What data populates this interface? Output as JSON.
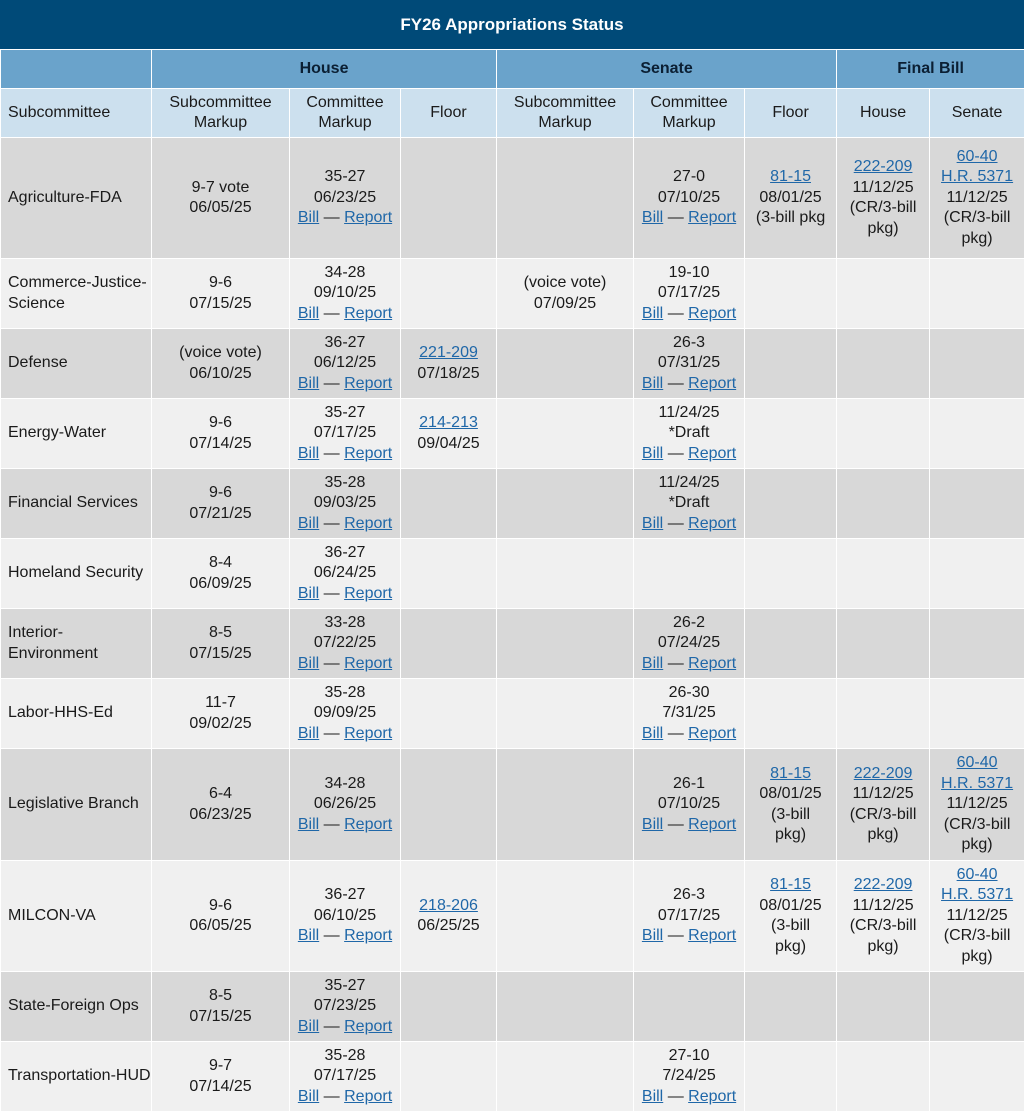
{
  "title": "FY26 Appropriations Status",
  "groups": {
    "house": "House",
    "senate": "Senate",
    "final": "Final Bill"
  },
  "columns": {
    "subcommittee": "Subcommittee",
    "house_sub": "Subcommittee Markup",
    "house_comm": "Committee Markup",
    "house_floor": "Floor",
    "senate_sub": "Subcommittee Markup",
    "senate_comm": "Committee Markup",
    "senate_floor": "Floor",
    "final_house": "House",
    "final_senate": "Senate"
  },
  "bill_label": "Bill",
  "report_label": "Report",
  "dash": "—",
  "rows": [
    {
      "name": "Agriculture-FDA",
      "height": 121,
      "shade": "dark",
      "house_sub": [
        {
          "t": "9-7 vote"
        },
        {
          "t": "06/05/25"
        }
      ],
      "house_comm": [
        {
          "t": "35-27"
        },
        {
          "t": "06/23/25"
        },
        {
          "br": 1
        }
      ],
      "house_floor": [],
      "senate_sub": [],
      "senate_comm": [
        {
          "t": "27-0"
        },
        {
          "t": "07/10/25"
        },
        {
          "br": 1
        }
      ],
      "senate_floor": [
        {
          "t": "81-15",
          "link": 1
        },
        {
          "t": "08/01/25"
        },
        {
          "t": "(3-bill pkg"
        }
      ],
      "final_house": [
        {
          "t": "222-209",
          "link": 1
        },
        {
          "t": "11/12/25"
        },
        {
          "t": "(CR/3-bill"
        },
        {
          "t": "pkg)"
        }
      ],
      "final_senate": [
        {
          "t": "60-40",
          "link": 1
        },
        {
          "t": "H.R. 5371",
          "link": 1
        },
        {
          "t": "11/12/25"
        },
        {
          "t": "(CR/3-bill"
        },
        {
          "t": "pkg)"
        }
      ]
    },
    {
      "name": "Commerce-Justice-Science",
      "height": 70,
      "shade": "light",
      "house_sub": [
        {
          "t": "9-6"
        },
        {
          "t": "07/15/25"
        }
      ],
      "house_comm": [
        {
          "t": "34-28"
        },
        {
          "t": "09/10/25"
        },
        {
          "br": 1
        }
      ],
      "house_floor": [],
      "senate_sub": [
        {
          "t": "(voice vote)"
        },
        {
          "t": "07/09/25"
        }
      ],
      "senate_comm": [
        {
          "t": "19-10"
        },
        {
          "t": "07/17/25"
        },
        {
          "br": 1
        }
      ],
      "senate_floor": [],
      "final_house": [],
      "final_senate": []
    },
    {
      "name": "Defense",
      "height": 70,
      "shade": "dark",
      "house_sub": [
        {
          "t": "(voice vote)"
        },
        {
          "t": "06/10/25"
        }
      ],
      "house_comm": [
        {
          "t": "36-27"
        },
        {
          "t": "06/12/25"
        },
        {
          "br": 1
        }
      ],
      "house_floor": [
        {
          "t": "221-209",
          "link": 1
        },
        {
          "t": "07/18/25"
        }
      ],
      "senate_sub": [],
      "senate_comm": [
        {
          "t": "26-3"
        },
        {
          "t": "07/31/25"
        },
        {
          "br": 1
        }
      ],
      "senate_floor": [],
      "final_house": [],
      "final_senate": []
    },
    {
      "name": "Energy-Water",
      "height": 70,
      "shade": "light",
      "house_sub": [
        {
          "t": "9-6"
        },
        {
          "t": "07/14/25"
        }
      ],
      "house_comm": [
        {
          "t": "35-27"
        },
        {
          "t": "07/17/25"
        },
        {
          "br": 1
        }
      ],
      "house_floor": [
        {
          "t": "214-213",
          "link": 1
        },
        {
          "t": "09/04/25"
        }
      ],
      "senate_sub": [],
      "senate_comm": [
        {
          "t": "11/24/25"
        },
        {
          "t": "*Draft"
        },
        {
          "br": 1
        }
      ],
      "senate_floor": [],
      "final_house": [],
      "final_senate": []
    },
    {
      "name": "Financial Services",
      "height": 70,
      "shade": "dark",
      "house_sub": [
        {
          "t": "9-6"
        },
        {
          "t": "07/21/25"
        }
      ],
      "house_comm": [
        {
          "t": "35-28"
        },
        {
          "t": "09/03/25"
        },
        {
          "br": 1
        }
      ],
      "house_floor": [],
      "senate_sub": [],
      "senate_comm": [
        {
          "t": "11/24/25"
        },
        {
          "t": "*Draft"
        },
        {
          "br": 1
        }
      ],
      "senate_floor": [],
      "final_house": [],
      "final_senate": []
    },
    {
      "name": "Homeland Security",
      "height": 70,
      "shade": "light",
      "house_sub": [
        {
          "t": "8-4"
        },
        {
          "t": "06/09/25"
        }
      ],
      "house_comm": [
        {
          "t": "36-27"
        },
        {
          "t": "06/24/25"
        },
        {
          "br": 1
        }
      ],
      "house_floor": [],
      "senate_sub": [],
      "senate_comm": [],
      "senate_floor": [],
      "final_house": [],
      "final_senate": []
    },
    {
      "name": "Interior-Environment",
      "height": 70,
      "shade": "dark",
      "house_sub": [
        {
          "t": "8-5"
        },
        {
          "t": "07/15/25"
        }
      ],
      "house_comm": [
        {
          "t": "33-28"
        },
        {
          "t": "07/22/25"
        },
        {
          "br": 1
        }
      ],
      "house_floor": [],
      "senate_sub": [],
      "senate_comm": [
        {
          "t": "26-2"
        },
        {
          "t": "07/24/25"
        },
        {
          "br": 1
        }
      ],
      "senate_floor": [],
      "final_house": [],
      "final_senate": []
    },
    {
      "name": "Labor-HHS-Ed",
      "height": 70,
      "shade": "light",
      "house_sub": [
        {
          "t": "11-7"
        },
        {
          "t": "09/02/25"
        }
      ],
      "house_comm": [
        {
          "t": "35-28"
        },
        {
          "t": "09/09/25"
        },
        {
          "br": 1
        }
      ],
      "house_floor": [],
      "senate_sub": [],
      "senate_comm": [
        {
          "t": "26-30"
        },
        {
          "t": "7/31/25"
        },
        {
          "br": 1
        }
      ],
      "senate_floor": [],
      "final_house": [],
      "final_senate": []
    },
    {
      "name": "Legislative Branch",
      "height": 112,
      "shade": "dark",
      "house_sub": [
        {
          "t": "6-4"
        },
        {
          "t": "06/23/25"
        }
      ],
      "house_comm": [
        {
          "t": "34-28"
        },
        {
          "t": "06/26/25"
        },
        {
          "br": 1
        }
      ],
      "house_floor": [],
      "senate_sub": [],
      "senate_comm": [
        {
          "t": "26-1"
        },
        {
          "t": "07/10/25"
        },
        {
          "br": 1
        }
      ],
      "senate_floor": [
        {
          "t": "81-15",
          "link": 1
        },
        {
          "t": "08/01/25"
        },
        {
          "t": "(3-bill"
        },
        {
          "t": "pkg)"
        }
      ],
      "final_house": [
        {
          "t": "222-209",
          "link": 1
        },
        {
          "t": "11/12/25"
        },
        {
          "t": "(CR/3-bill"
        },
        {
          "t": "pkg)"
        }
      ],
      "final_senate": [
        {
          "t": "60-40",
          "link": 1
        },
        {
          "t": "H.R. 5371",
          "link": 1
        },
        {
          "t": "11/12/25"
        },
        {
          "t": "(CR/3-bill"
        },
        {
          "t": "pkg)"
        }
      ]
    },
    {
      "name": "MILCON-VA",
      "height": 111,
      "shade": "light",
      "house_sub": [
        {
          "t": "9-6"
        },
        {
          "t": "06/05/25"
        }
      ],
      "house_comm": [
        {
          "t": "36-27"
        },
        {
          "t": "06/10/25"
        },
        {
          "br": 1
        }
      ],
      "house_floor": [
        {
          "t": "218-206",
          "link": 1
        },
        {
          "t": "06/25/25"
        }
      ],
      "senate_sub": [],
      "senate_comm": [
        {
          "t": "26-3"
        },
        {
          "t": "07/17/25"
        },
        {
          "br": 1
        }
      ],
      "senate_floor": [
        {
          "t": "81-15",
          "link": 1
        },
        {
          "t": "08/01/25"
        },
        {
          "t": "(3-bill"
        },
        {
          "t": "pkg)"
        }
      ],
      "final_house": [
        {
          "t": "222-209",
          "link": 1
        },
        {
          "t": "11/12/25"
        },
        {
          "t": "(CR/3-bill"
        },
        {
          "t": "pkg)"
        }
      ],
      "final_senate": [
        {
          "t": "60-40",
          "link": 1
        },
        {
          "t": "H.R. 5371",
          "link": 1
        },
        {
          "t": "11/12/25"
        },
        {
          "t": "(CR/3-bill"
        },
        {
          "t": "pkg)"
        }
      ]
    },
    {
      "name": "State-Foreign Ops",
      "height": 70,
      "shade": "dark",
      "house_sub": [
        {
          "t": "8-5"
        },
        {
          "t": "07/15/25"
        }
      ],
      "house_comm": [
        {
          "t": "35-27"
        },
        {
          "t": "07/23/25"
        },
        {
          "br": 1
        }
      ],
      "house_floor": [],
      "senate_sub": [],
      "senate_comm": [],
      "senate_floor": [],
      "final_house": [],
      "final_senate": []
    },
    {
      "name": "Transportation-HUD",
      "height": 70,
      "shade": "light",
      "house_sub": [
        {
          "t": "9-7"
        },
        {
          "t": "07/14/25"
        }
      ],
      "house_comm": [
        {
          "t": "35-28"
        },
        {
          "t": "07/17/25"
        },
        {
          "br": 1
        }
      ],
      "house_floor": [],
      "senate_sub": [],
      "senate_comm": [
        {
          "t": "27-10"
        },
        {
          "t": "7/24/25"
        },
        {
          "br": 1
        }
      ],
      "senate_floor": [],
      "final_house": [],
      "final_senate": []
    }
  ]
}
